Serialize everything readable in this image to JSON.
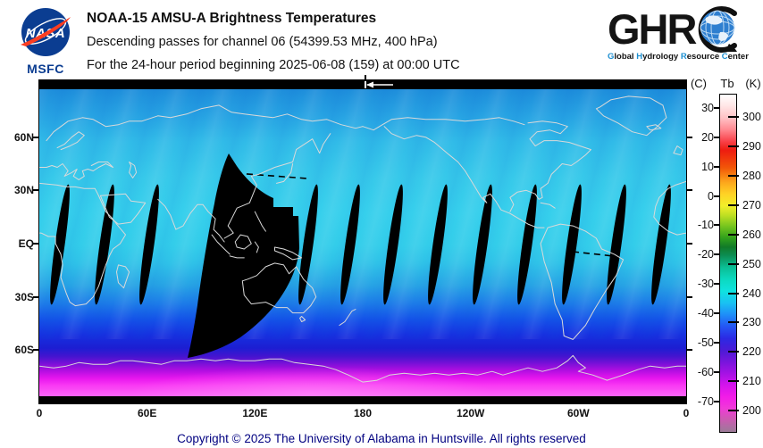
{
  "header": {
    "nasa": {
      "logo_text": "NASA",
      "msfc": "MSFC"
    },
    "title": "NOAA-15 AMSU-A Brightness Temperatures",
    "subtitle1": "Descending passes for channel 06 (54399.53 MHz, 400 hPa)",
    "subtitle2": "For the 24-hour period beginning 2025-06-08 (159) at 00:00 UTC",
    "ghrc": {
      "logo_text": "GHR",
      "tagline_words": [
        {
          "first": "G",
          "rest": "lobal"
        },
        {
          "first": "H",
          "rest": "ydrology"
        },
        {
          "first": "R",
          "rest": "esource"
        },
        {
          "first": "C",
          "rest": "enter"
        }
      ],
      "initial_color": "#1d8fd1"
    }
  },
  "map": {
    "lat_ticks": [
      {
        "label": "60N",
        "lat": 60
      },
      {
        "label": "30N",
        "lat": 30
      },
      {
        "label": "EQ",
        "lat": 0
      },
      {
        "label": "30S",
        "lat": -30
      },
      {
        "label": "60S",
        "lat": -60
      }
    ],
    "lon_ticks": [
      {
        "label": "0",
        "lon": 0
      },
      {
        "label": "60E",
        "lon": 60
      },
      {
        "label": "120E",
        "lon": 120
      },
      {
        "label": "180",
        "lon": 180
      },
      {
        "label": "120W",
        "lon": 240
      },
      {
        "label": "60W",
        "lon": 300
      },
      {
        "label": "0",
        "lon": 360
      }
    ],
    "start_marker": "left-arrow at 180 longitude on top edge"
  },
  "colorbar": {
    "title_c": "(C)",
    "title_tb": "Tb",
    "title_k": "(K)",
    "celsius_ticks": [
      30,
      20,
      10,
      0,
      -10,
      -20,
      -30,
      -40,
      -50,
      -60,
      -70
    ],
    "kelvin_ticks": [
      300,
      290,
      280,
      270,
      260,
      250,
      240,
      230,
      220,
      210,
      200
    ],
    "approx_top_k": 308,
    "approx_bottom_k": 193
  },
  "footer": {
    "copyright": "Copyright © 2025 The University of Alabama in Huntsville.  All rights reserved"
  },
  "chart_data": {
    "type": "heatmap",
    "title": "NOAA-15 AMSU-A Brightness Temperatures",
    "satellite": "NOAA-15",
    "instrument": "AMSU-A",
    "channel": "06",
    "frequency_mhz": 54399.53,
    "pressure_level_hpa": 400,
    "pass_type": "Descending",
    "period": "24-hour period beginning 2025-06-08 (day 159) at 00:00 UTC",
    "projection": "equirectangular, 0E at left edge wrapping to 0E at right edge",
    "lat_axis_labels": [
      "60N",
      "30N",
      "EQ",
      "30S",
      "60S"
    ],
    "lon_axis_labels": [
      "0",
      "60E",
      "120E",
      "180",
      "120W",
      "60W",
      "0"
    ],
    "value_units": [
      "K",
      "C"
    ],
    "colorbar_kelvin_ticks": [
      300,
      290,
      280,
      270,
      260,
      250,
      240,
      230,
      220,
      210,
      200
    ],
    "colorbar_celsius_ticks": [
      30,
      20,
      10,
      0,
      -10,
      -20,
      -30,
      -40,
      -50,
      -60,
      -70
    ],
    "colorbar_range_k": [
      193,
      308
    ],
    "missing_data_color": "#000000",
    "field_summary": [
      {
        "region": "Tropics and northern mid-latitudes",
        "approx_tb_k": "238-246",
        "appearance": "cyan / light blue with diagonal swath streaks"
      },
      {
        "region": "Northern high latitudes",
        "approx_tb_k": "233-238",
        "appearance": "medium blue"
      },
      {
        "region": "Southern mid-latitudes 30S-55S",
        "approx_tb_k": "222-233",
        "appearance": "blue to dark blue"
      },
      {
        "region": "Southern high latitudes 55S-70S",
        "approx_tb_k": "210-222",
        "appearance": "indigo to violet"
      },
      {
        "region": "Antarctica",
        "approx_tb_k": "198-210",
        "appearance": "magenta / pink"
      },
      {
        "region": "Inter-orbit gaps",
        "approx_tb_k": "no data",
        "appearance": "13 slanted black lens shapes between 30N and 35S spaced ~25 deg longitude, plus one wide black missing swath from ~30N over Southeast Asia curving to ~70S near 75E, plus short black dashed segments"
      }
    ]
  }
}
